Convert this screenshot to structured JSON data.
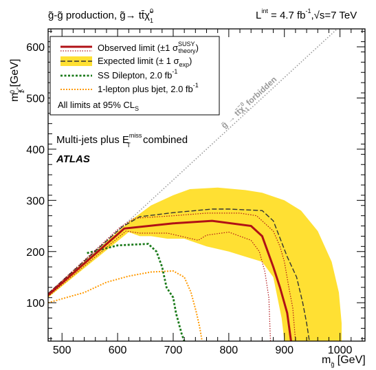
{
  "chart_data": {
    "type": "line",
    "header_left": "g̃-g̃ production, g̃→ tt̄χ̃",
    "header_left_sup": "0",
    "header_left_sub": "1",
    "header_right_L": "L",
    "header_right_int": "int",
    "header_right_rest": " = 4.7 fb",
    "header_right_inv": "-1",
    "header_right_sqrt": ",√s=7 TeV",
    "xlabel_main": "m",
    "xlabel_sub": "g̃",
    "xlabel_unit": " [GeV]",
    "ylabel_main": "m",
    "ylabel_sub": "χ̃",
    "ylabel_sup": "0",
    "ylabel_subsub": "1",
    "ylabel_unit": " [GeV]",
    "xlim": [
      475,
      1045
    ],
    "ylim": [
      25,
      635
    ],
    "xticks": [
      500,
      600,
      700,
      800,
      900,
      1000
    ],
    "yticks": [
      100,
      200,
      300,
      400,
      500,
      600
    ],
    "forbidden_label": "g̃ → tt̄χ̃",
    "forbidden_label_sup": "0",
    "forbidden_label_sub": "1",
    "forbidden_label_rest": " forbidden",
    "legend": {
      "observed": "Observed limit (±1 σ",
      "observed_sup": "SUSY",
      "observed_sub": "theory",
      "observed_end": ")",
      "expected": "Expected limit (± 1 σ",
      "expected_sub": "exp",
      "expected_end": ")",
      "ss": "SS Dilepton, 2.0 fb",
      "ss_sup": "-1",
      "onelep": "1-lepton plus bjet, 2.0 fb",
      "onelep_sup": "-1",
      "cls": "All limits at 95% CL",
      "cls_sub": "S"
    },
    "annotation_main": "Multi-jets plus E",
    "annotation_sup": "miss",
    "annotation_sub": "T",
    "annotation_end": " combined",
    "atlas": "ATLAS",
    "colors": {
      "observed": "#b01116",
      "band": "#ffe033",
      "expected": "#333333",
      "ss": "#1a7a1a",
      "onelep": "#ff9900",
      "forbidden": "#999999"
    },
    "series": [
      {
        "name": "Observed limit",
        "key": "observed",
        "x": [
          475,
          612,
          700,
          770,
          840,
          860,
          880,
          892,
          905,
          912
        ],
        "y": [
          115,
          245,
          255,
          260,
          250,
          230,
          170,
          130,
          80,
          25
        ]
      },
      {
        "name": "Observed +1σ theory",
        "key": "obs_up",
        "x": [
          475,
          605,
          630,
          700,
          760,
          820,
          850,
          880,
          892,
          900,
          908,
          915,
          920
        ],
        "y": [
          118,
          248,
          265,
          270,
          275,
          275,
          270,
          240,
          210,
          180,
          130,
          90,
          25
        ]
      },
      {
        "name": "Observed -1σ theory",
        "key": "obs_down",
        "x": [
          475,
          615,
          640,
          690,
          745,
          760,
          800,
          840,
          855,
          865,
          872,
          875
        ],
        "y": [
          112,
          240,
          236,
          236,
          222,
          232,
          238,
          222,
          200,
          160,
          110,
          25
        ]
      },
      {
        "name": "Expected limit",
        "key": "expected",
        "x": [
          475,
          608,
          640,
          700,
          770,
          800,
          860,
          880,
          905,
          922,
          933,
          940,
          945
        ],
        "y": [
          118,
          248,
          268,
          276,
          283,
          283,
          280,
          260,
          190,
          150,
          100,
          60,
          25
        ]
      },
      {
        "name": "SS Dilepton, 2.0 fb-1",
        "key": "ss",
        "x": [
          545,
          600,
          655,
          670,
          680,
          688,
          700,
          705,
          710,
          715,
          720
        ],
        "y": [
          197,
          212,
          215,
          200,
          170,
          130,
          110,
          80,
          60,
          40,
          25
        ]
      },
      {
        "name": "1-lepton plus bjet, 2.0 fb-1",
        "key": "onelep",
        "x": [
          475,
          540,
          580,
          620,
          660,
          700,
          720,
          732,
          742,
          748,
          752
        ],
        "y": [
          100,
          120,
          140,
          152,
          160,
          162,
          150,
          120,
          80,
          50,
          25
        ]
      }
    ],
    "band": {
      "name": "Expected ±1σ exp",
      "upper_x": [
        475,
        620,
        660,
        700,
        730,
        780,
        830,
        860,
        900,
        930,
        960,
        985,
        998,
        1003
      ],
      "upper_y": [
        118,
        258,
        290,
        310,
        322,
        325,
        320,
        315,
        300,
        280,
        240,
        180,
        120,
        60
      ],
      "lower_x": [
        1003,
        930,
        900,
        895,
        880,
        860,
        830,
        800,
        760,
        720,
        690,
        660,
        640,
        620,
        475
      ],
      "lower_y": [
        25,
        25,
        25,
        70,
        150,
        180,
        190,
        200,
        210,
        225,
        225,
        230,
        230,
        238,
        110
      ]
    }
  }
}
